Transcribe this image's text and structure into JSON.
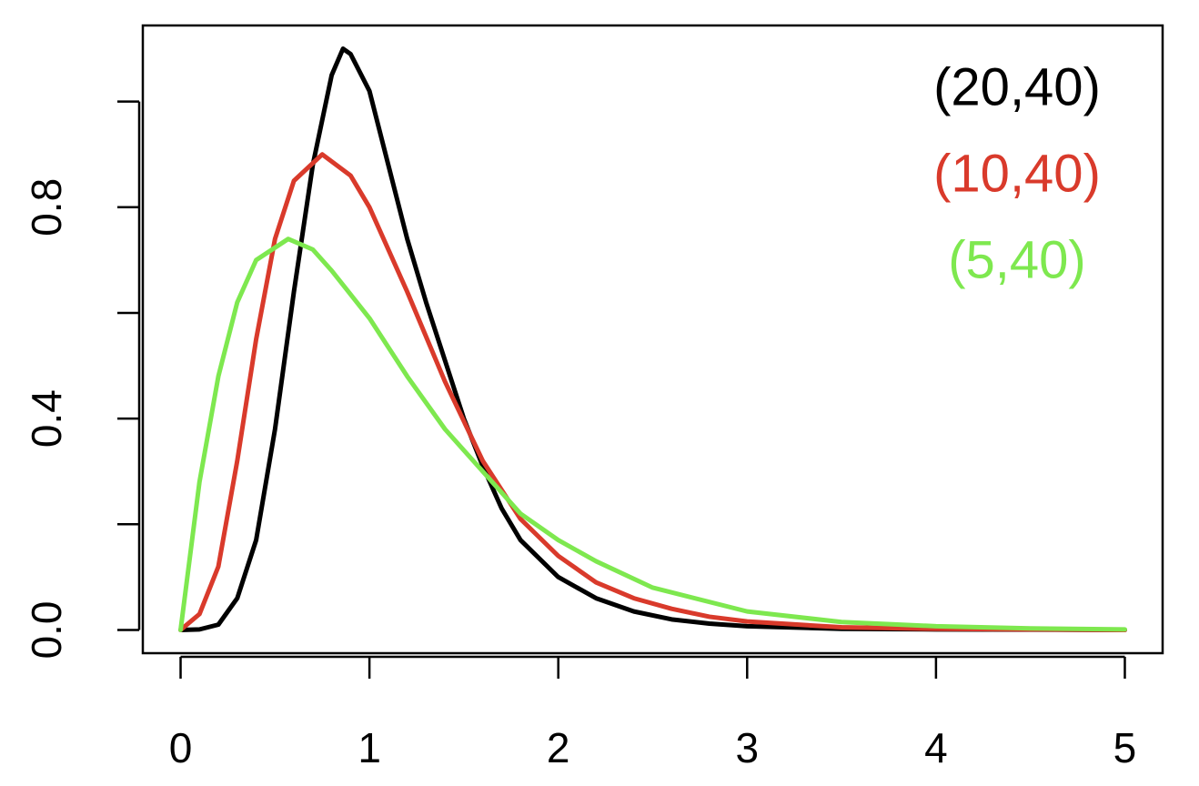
{
  "chart_data": {
    "type": "line",
    "xlim": [
      -0.2,
      5.2
    ],
    "xticks": [
      0,
      1,
      2,
      3,
      4,
      5
    ],
    "ylim": [
      -0.044,
      1.144
    ],
    "yticks": [
      {
        "value": 0,
        "label": "0.0"
      },
      {
        "value": 0.2,
        "label": null
      },
      {
        "value": 0.4,
        "label": "0.4"
      },
      {
        "value": 0.6,
        "label": null
      },
      {
        "value": 0.8,
        "label": "0.8"
      },
      {
        "value": 1.0,
        "label": null
      }
    ],
    "legend": "top-right",
    "series": [
      {
        "name": "(20,40)",
        "color": "#000000",
        "x": [
          0,
          0.1,
          0.2,
          0.3,
          0.4,
          0.5,
          0.6,
          0.7,
          0.8,
          0.86,
          0.9,
          1.0,
          1.1,
          1.2,
          1.3,
          1.4,
          1.5,
          1.6,
          1.7,
          1.8,
          2.0,
          2.2,
          2.4,
          2.6,
          2.8,
          3.0,
          3.5,
          4.0,
          5.0
        ],
        "values": [
          0,
          0.001,
          0.01,
          0.06,
          0.17,
          0.38,
          0.64,
          0.88,
          1.05,
          1.1,
          1.09,
          1.02,
          0.88,
          0.74,
          0.62,
          0.51,
          0.4,
          0.31,
          0.23,
          0.17,
          0.1,
          0.06,
          0.035,
          0.02,
          0.012,
          0.007,
          0.002,
          0.001,
          0
        ]
      },
      {
        "name": "(10,40)",
        "color": "#d93a2b",
        "x": [
          0,
          0.1,
          0.2,
          0.3,
          0.4,
          0.5,
          0.6,
          0.75,
          0.9,
          1.0,
          1.2,
          1.4,
          1.6,
          1.8,
          2.0,
          2.2,
          2.4,
          2.6,
          2.8,
          3.0,
          3.5,
          4.0,
          4.5,
          5.0
        ],
        "values": [
          0,
          0.03,
          0.12,
          0.32,
          0.55,
          0.74,
          0.85,
          0.9,
          0.86,
          0.8,
          0.64,
          0.47,
          0.32,
          0.21,
          0.14,
          0.09,
          0.06,
          0.04,
          0.025,
          0.016,
          0.005,
          0.002,
          0.001,
          0
        ]
      },
      {
        "name": "(5,40)",
        "color": "#7ee84f",
        "x": [
          0,
          0.1,
          0.2,
          0.3,
          0.4,
          0.57,
          0.7,
          0.8,
          1.0,
          1.2,
          1.4,
          1.6,
          1.8,
          2.0,
          2.2,
          2.5,
          3.0,
          3.5,
          4.0,
          4.5,
          5.0
        ],
        "values": [
          0,
          0.28,
          0.48,
          0.62,
          0.7,
          0.74,
          0.72,
          0.68,
          0.59,
          0.48,
          0.38,
          0.3,
          0.22,
          0.17,
          0.13,
          0.08,
          0.035,
          0.015,
          0.007,
          0.003,
          0.001
        ]
      }
    ]
  }
}
